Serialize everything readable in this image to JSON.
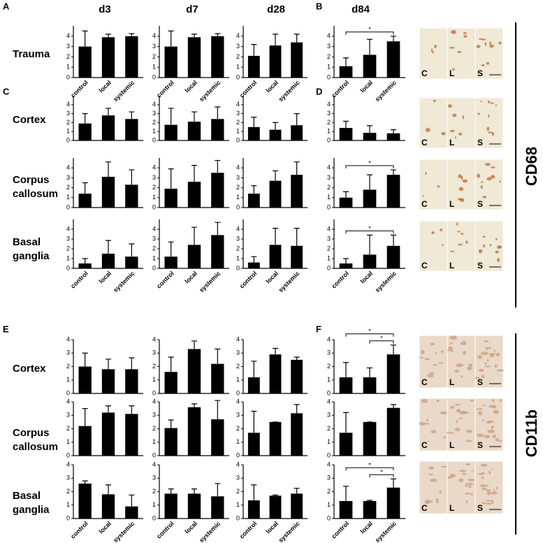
{
  "panel_labels": [
    "A",
    "B",
    "C",
    "D",
    "E",
    "F"
  ],
  "columns": [
    "d3",
    "d7",
    "d28",
    "d84"
  ],
  "rows": [
    [
      "Trauma"
    ],
    [
      "Cortex"
    ],
    [
      "Corpus",
      "callosum"
    ],
    [
      "Basal",
      "ganglia"
    ],
    [
      "Cortex"
    ],
    [
      "Corpus",
      "callosum"
    ],
    [
      "Basal",
      "ganglia"
    ]
  ],
  "markers": [
    "CD68",
    "CD11b"
  ],
  "image_labels": [
    "C",
    "L",
    "S"
  ],
  "chart_data": [
    {
      "type": "bar",
      "categories": [
        "control",
        "local",
        "systemic"
      ],
      "values": [
        3.0,
        3.9,
        4.0
      ],
      "errors": [
        1.5,
        0.3,
        0.25
      ],
      "ylim": [
        0,
        5
      ],
      "yticks": [
        0,
        1,
        2,
        3,
        4
      ],
      "color": "#000000"
    },
    {
      "type": "bar",
      "categories": [
        "control",
        "local",
        "systemic"
      ],
      "values": [
        3.0,
        3.9,
        4.0
      ],
      "errors": [
        1.5,
        0.3,
        0.25
      ],
      "ylim": [
        0,
        5
      ],
      "yticks": [
        0,
        1,
        2,
        3,
        4
      ],
      "color": "#000000"
    },
    {
      "type": "bar",
      "categories": [
        "control",
        "local",
        "systemic"
      ],
      "values": [
        2.1,
        3.1,
        3.4
      ],
      "errors": [
        1.1,
        1.1,
        0.8
      ],
      "ylim": [
        0,
        5
      ],
      "yticks": [
        0,
        1,
        2,
        3,
        4
      ],
      "color": "#000000"
    },
    {
      "type": "bar",
      "categories": [
        "control",
        "local",
        "systemic"
      ],
      "values": [
        1.1,
        2.2,
        3.5
      ],
      "errors": [
        0.8,
        1.5,
        0.5
      ],
      "ylim": [
        0,
        5
      ],
      "yticks": [
        0,
        1,
        2,
        3,
        4
      ],
      "color": "#000000",
      "significance": [
        {
          "pair": [
            0,
            2
          ],
          "label": "*"
        }
      ]
    },
    {
      "type": "bar",
      "categories": [
        null,
        null,
        null
      ],
      "values": [
        1.9,
        2.8,
        2.4
      ],
      "errors": [
        1.1,
        0.8,
        0.8
      ],
      "ylim": [
        0,
        5
      ],
      "yticks": [
        0,
        1,
        2,
        3,
        4
      ],
      "color": "#000000"
    },
    {
      "type": "bar",
      "categories": [
        null,
        null,
        null
      ],
      "values": [
        1.75,
        2.1,
        2.4
      ],
      "errors": [
        1.85,
        1.1,
        1.35
      ],
      "ylim": [
        0,
        5
      ],
      "yticks": [
        0,
        1,
        2,
        3,
        4
      ],
      "color": "#000000"
    },
    {
      "type": "bar",
      "categories": [
        null,
        null,
        null
      ],
      "values": [
        1.5,
        1.2,
        1.7
      ],
      "errors": [
        1.1,
        0.8,
        1.3
      ],
      "ylim": [
        0,
        5
      ],
      "yticks": [
        0,
        1,
        2,
        3,
        4
      ],
      "color": "#000000"
    },
    {
      "type": "bar",
      "categories": [
        null,
        null,
        null
      ],
      "values": [
        1.4,
        0.85,
        0.8
      ],
      "errors": [
        0.75,
        0.8,
        0.4
      ],
      "ylim": [
        0,
        5
      ],
      "yticks": [
        0,
        1,
        2,
        3,
        4
      ],
      "color": "#000000"
    },
    {
      "type": "bar",
      "categories": [
        null,
        null,
        null
      ],
      "values": [
        1.4,
        3.1,
        2.3
      ],
      "errors": [
        1.1,
        1.5,
        1.5
      ],
      "ylim": [
        0,
        5
      ],
      "yticks": [
        0,
        1,
        2,
        3,
        4
      ],
      "color": "#000000"
    },
    {
      "type": "bar",
      "categories": [
        null,
        null,
        null
      ],
      "values": [
        1.9,
        2.6,
        3.5
      ],
      "errors": [
        2.0,
        1.65,
        1.25
      ],
      "ylim": [
        0,
        5
      ],
      "yticks": [
        0,
        1,
        2,
        3,
        4
      ],
      "color": "#000000"
    },
    {
      "type": "bar",
      "categories": [
        null,
        null,
        null
      ],
      "values": [
        1.4,
        2.7,
        3.3
      ],
      "errors": [
        0.8,
        1.0,
        1.3
      ],
      "ylim": [
        0,
        5
      ],
      "yticks": [
        0,
        1,
        2,
        3,
        4
      ],
      "color": "#000000"
    },
    {
      "type": "bar",
      "categories": [
        null,
        null,
        null
      ],
      "values": [
        1.0,
        1.8,
        3.3
      ],
      "errors": [
        0.6,
        1.5,
        0.5
      ],
      "ylim": [
        0,
        5
      ],
      "yticks": [
        0,
        1,
        2,
        3,
        4
      ],
      "color": "#000000",
      "significance": [
        {
          "pair": [
            0,
            2
          ],
          "label": "*"
        }
      ]
    },
    {
      "type": "bar",
      "categories": [
        "control",
        "local",
        "systemic"
      ],
      "values": [
        0.5,
        1.5,
        1.2
      ],
      "errors": [
        0.5,
        1.35,
        1.3
      ],
      "ylim": [
        0,
        5
      ],
      "yticks": [
        0,
        1,
        2,
        3,
        4
      ],
      "color": "#000000"
    },
    {
      "type": "bar",
      "categories": [
        "control",
        "local",
        "systemic"
      ],
      "values": [
        1.2,
        2.4,
        3.4
      ],
      "errors": [
        1.5,
        1.8,
        1.3
      ],
      "ylim": [
        0,
        5
      ],
      "yticks": [
        0,
        1,
        2,
        3,
        4
      ],
      "color": "#000000"
    },
    {
      "type": "bar",
      "categories": [
        "control",
        "local",
        "systemic"
      ],
      "values": [
        0.6,
        2.4,
        2.3
      ],
      "errors": [
        0.6,
        1.7,
        1.8
      ],
      "ylim": [
        0,
        5
      ],
      "yticks": [
        0,
        1,
        2,
        3,
        4
      ],
      "color": "#000000"
    },
    {
      "type": "bar",
      "categories": [
        "control",
        "local",
        "systemic"
      ],
      "values": [
        0.5,
        1.4,
        2.3
      ],
      "errors": [
        0.5,
        2.0,
        1.1
      ],
      "ylim": [
        0,
        5
      ],
      "yticks": [
        0,
        1,
        2,
        3,
        4
      ],
      "color": "#000000",
      "significance": [
        {
          "pair": [
            0,
            2
          ],
          "label": "*"
        }
      ]
    },
    {
      "type": "bar",
      "categories": [
        null,
        null,
        null
      ],
      "values": [
        2.0,
        1.8,
        1.8
      ],
      "errors": [
        1.0,
        0.75,
        0.85
      ],
      "ylim": [
        0,
        4
      ],
      "yticks": [
        0,
        1,
        2,
        3,
        4
      ],
      "color": "#000000"
    },
    {
      "type": "bar",
      "categories": [
        null,
        null,
        null
      ],
      "values": [
        1.6,
        3.3,
        2.2
      ],
      "errors": [
        1.1,
        0.6,
        1.1
      ],
      "ylim": [
        0,
        4
      ],
      "yticks": [
        0,
        1,
        2,
        3,
        4
      ],
      "color": "#000000"
    },
    {
      "type": "bar",
      "categories": [
        null,
        null,
        null
      ],
      "values": [
        1.2,
        2.9,
        2.5
      ],
      "errors": [
        1.2,
        0.45,
        0.2
      ],
      "ylim": [
        0,
        4
      ],
      "yticks": [
        0,
        1,
        2,
        3,
        4
      ],
      "color": "#000000"
    },
    {
      "type": "bar",
      "categories": [
        null,
        null,
        null
      ],
      "values": [
        1.2,
        1.2,
        2.9
      ],
      "errors": [
        1.1,
        0.7,
        0.7
      ],
      "ylim": [
        0,
        4
      ],
      "yticks": [
        0,
        1,
        2,
        3,
        4
      ],
      "color": "#000000",
      "significance": [
        {
          "pair": [
            0,
            2
          ],
          "label": "*"
        },
        {
          "pair": [
            1,
            2
          ],
          "label": "*"
        }
      ]
    },
    {
      "type": "bar",
      "categories": [
        null,
        null,
        null
      ],
      "values": [
        2.2,
        3.2,
        3.1
      ],
      "errors": [
        1.3,
        0.5,
        0.6
      ],
      "ylim": [
        0,
        4
      ],
      "yticks": [
        0,
        1,
        2,
        3,
        4
      ],
      "color": "#000000"
    },
    {
      "type": "bar",
      "categories": [
        null,
        null,
        null
      ],
      "values": [
        2.05,
        3.6,
        2.7
      ],
      "errors": [
        0.6,
        0.25,
        1.4
      ],
      "ylim": [
        0,
        4
      ],
      "yticks": [
        0,
        1,
        2,
        3,
        4
      ],
      "color": "#000000"
    },
    {
      "type": "bar",
      "categories": [
        null,
        null,
        null
      ],
      "values": [
        1.7,
        2.5,
        3.15
      ],
      "errors": [
        1.6,
        0,
        0.65
      ],
      "ylim": [
        0,
        4
      ],
      "yticks": [
        0,
        1,
        2,
        3,
        4
      ],
      "color": "#000000"
    },
    {
      "type": "bar",
      "categories": [
        null,
        null,
        null
      ],
      "values": [
        1.7,
        2.5,
        3.55
      ],
      "errors": [
        1.5,
        0,
        0.25
      ],
      "ylim": [
        0,
        4
      ],
      "yticks": [
        0,
        1,
        2,
        3,
        4
      ],
      "color": "#000000"
    },
    {
      "type": "bar",
      "categories": [
        "control",
        "local",
        "systemic"
      ],
      "values": [
        2.6,
        1.8,
        0.9
      ],
      "errors": [
        0.2,
        0.7,
        0.85
      ],
      "ylim": [
        0,
        4
      ],
      "yticks": [
        0,
        1,
        2,
        3,
        4
      ],
      "color": "#000000"
    },
    {
      "type": "bar",
      "categories": [
        "control",
        "local",
        "systemic"
      ],
      "values": [
        1.85,
        1.85,
        1.65
      ],
      "errors": [
        0.35,
        0.35,
        0.95
      ],
      "ylim": [
        0,
        4
      ],
      "yticks": [
        0,
        1,
        2,
        3,
        4
      ],
      "color": "#000000"
    },
    {
      "type": "bar",
      "categories": [
        "control",
        "local",
        "systemic"
      ],
      "values": [
        1.35,
        1.7,
        1.85
      ],
      "errors": [
        1.15,
        0.05,
        0.4
      ],
      "ylim": [
        0,
        4
      ],
      "yticks": [
        0,
        1,
        2,
        3,
        4
      ],
      "color": "#000000"
    },
    {
      "type": "bar",
      "categories": [
        "control",
        "local",
        "systemic"
      ],
      "values": [
        1.3,
        1.3,
        2.3
      ],
      "errors": [
        1.1,
        0.05,
        0.65
      ],
      "ylim": [
        0,
        4
      ],
      "yticks": [
        0,
        1,
        2,
        3,
        4
      ],
      "color": "#000000",
      "significance": [
        {
          "pair": [
            0,
            2
          ],
          "label": "*"
        },
        {
          "pair": [
            1,
            2
          ],
          "label": "*"
        }
      ]
    }
  ]
}
